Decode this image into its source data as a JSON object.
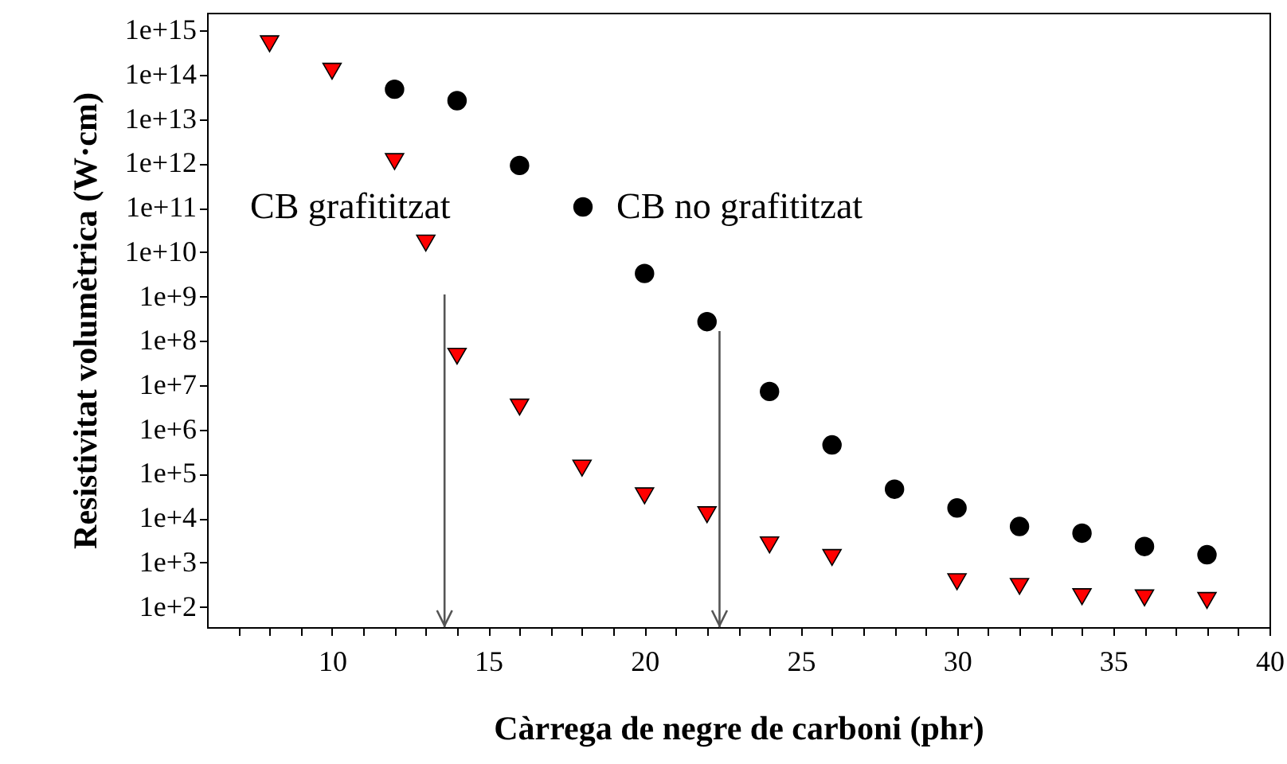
{
  "chart_data": {
    "type": "scatter",
    "xlabel": "Càrrega de negre de carboni (phr)",
    "ylabel": "Resistivitat volumètrica (W·cm)",
    "log": "y",
    "legend": "left",
    "xlim": [
      6,
      40
    ],
    "xticks": [
      {
        "value": 7,
        "label": null
      },
      {
        "value": 8,
        "label": null
      },
      {
        "value": 9,
        "label": null
      },
      10,
      {
        "value": 11,
        "label": null
      },
      {
        "value": 12,
        "label": null
      },
      {
        "value": 13,
        "label": null
      },
      {
        "value": 14,
        "label": null
      },
      15,
      {
        "value": 16,
        "label": null
      },
      {
        "value": 17,
        "label": null
      },
      {
        "value": 18,
        "label": null
      },
      {
        "value": 19,
        "label": null
      },
      20,
      {
        "value": 21,
        "label": null
      },
      {
        "value": 22,
        "label": null
      },
      {
        "value": 23,
        "label": null
      },
      {
        "value": 24,
        "label": null
      },
      25,
      {
        "value": 26,
        "label": null
      },
      {
        "value": 27,
        "label": null
      },
      {
        "value": 28,
        "label": null
      },
      {
        "value": 29,
        "label": null
      },
      30,
      {
        "value": 31,
        "label": null
      },
      {
        "value": 32,
        "label": null
      },
      {
        "value": 33,
        "label": null
      },
      {
        "value": 34,
        "label": null
      },
      35,
      {
        "value": 36,
        "label": null
      },
      {
        "value": 37,
        "label": null
      },
      {
        "value": 38,
        "label": null
      },
      {
        "value": 39,
        "label": null
      },
      40
    ],
    "ylim": [
      35,
      2500000000000000.0
    ],
    "yticks": [
      {
        "value": 100,
        "label": "1e+2"
      },
      {
        "value": 1000,
        "label": "1e+3"
      },
      {
        "value": 10000,
        "label": "1e+4"
      },
      {
        "value": 100000,
        "label": "1e+5"
      },
      {
        "value": 1000000,
        "label": "1e+6"
      },
      {
        "value": 10000000,
        "label": "1e+7"
      },
      {
        "value": 100000000,
        "label": "1e+8"
      },
      {
        "value": 1000000000,
        "label": "1e+9"
      },
      {
        "value": 10000000000,
        "label": "1e+10"
      },
      {
        "value": 100000000000,
        "label": "1e+11"
      },
      {
        "value": 1000000000000,
        "label": "1e+12"
      },
      {
        "value": 10000000000000,
        "label": "1e+13"
      },
      {
        "value": 100000000000000,
        "label": "1e+14"
      },
      {
        "value": 1000000000000000,
        "label": "1e+15"
      }
    ],
    "series": [
      {
        "name": "CB grafititzat",
        "color": "#ff0000",
        "marker": "triangle",
        "x": [
          8,
          10,
          12,
          13,
          14,
          16,
          18,
          20,
          22,
          24,
          26,
          30,
          32,
          34,
          36,
          38
        ],
        "values": [
          500000000000000.0,
          120000000000000.0,
          1100000000000.0,
          16000000000.0,
          45000000.0,
          3200000.0,
          135000.0,
          32000.0,
          12000.0,
          2500,
          1300,
          370,
          290,
          170,
          160,
          140
        ]
      },
      {
        "name": "CB no grafititzat",
        "color": "#000000",
        "marker": "circle",
        "x": [
          12,
          14,
          16,
          20,
          22,
          24,
          26,
          28,
          30,
          32,
          34,
          36,
          38
        ],
        "values": [
          47000000000000.0,
          26000000000000.0,
          900000000000.0,
          3300000000.0,
          270000000.0,
          7200000.0,
          450000.0,
          45000.0,
          17000.0,
          6500,
          4600,
          2300,
          1500
        ]
      }
    ],
    "ref_lines": [
      {
        "axis": "x",
        "value": 13.6,
        "color": "#555555"
      },
      {
        "axis": "x",
        "value": 22.4,
        "color": "#555555"
      }
    ]
  }
}
